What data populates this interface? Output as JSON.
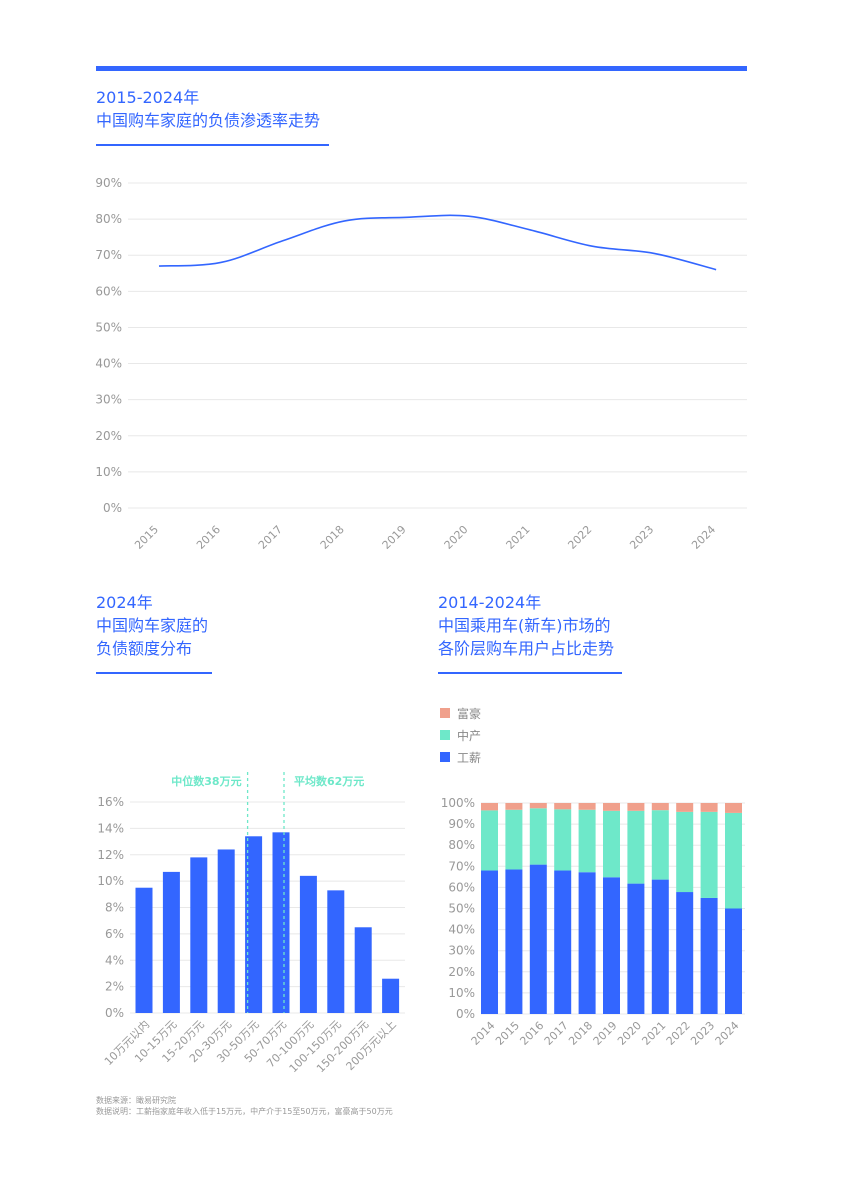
{
  "colors": {
    "accent": "#3366ff",
    "working": "#3366ff",
    "middle": "#6ee8c9",
    "rich": "#f0a08c",
    "annotation": "#6ee8c9",
    "grid": "#e8e8e8",
    "tick": "#999999"
  },
  "chart_data": [
    {
      "type": "line",
      "title_lines": [
        "2015-2024年",
        "中国购车家庭的负债渗透率走势"
      ],
      "categories": [
        "2015",
        "2016",
        "2017",
        "2018",
        "2019",
        "2020",
        "2021",
        "2022",
        "2023",
        "2024"
      ],
      "values": [
        67,
        68,
        74,
        79.5,
        80.5,
        80.8,
        77,
        72.5,
        70.5,
        66
      ],
      "yticks": [
        "0%",
        "10%",
        "20%",
        "30%",
        "40%",
        "50%",
        "60%",
        "70%",
        "80%",
        "90%"
      ],
      "ylim": [
        0,
        90
      ],
      "grid": true,
      "smooth": true
    },
    {
      "type": "bar",
      "title_lines": [
        "2024年",
        "中国购车家庭的",
        "负债额度分布"
      ],
      "categories": [
        "10万元以内",
        "10-15万元",
        "15-20万元",
        "20-30万元",
        "30-50万元",
        "50-70万元",
        "70-100万元",
        "100-150万元",
        "150-200万元",
        "200万元以上"
      ],
      "values": [
        9.5,
        10.7,
        11.8,
        12.4,
        13.4,
        13.7,
        10.4,
        9.3,
        6.5,
        2.6
      ],
      "yticks": [
        "0%",
        "2%",
        "4%",
        "6%",
        "8%",
        "10%",
        "12%",
        "14%",
        "16%"
      ],
      "ylim": [
        0,
        16
      ],
      "grid": true,
      "annotations": [
        {
          "label": "中位数38万元",
          "category_index": 4
        },
        {
          "label": "平均数62万元",
          "category_index": 5
        }
      ]
    },
    {
      "type": "bar",
      "stacked": true,
      "title_lines": [
        "2014-2024年",
        "中国乘用车(新车)市场的",
        "各阶层购车用户占比走势"
      ],
      "categories": [
        "2014",
        "2015",
        "2016",
        "2017",
        "2018",
        "2019",
        "2020",
        "2021",
        "2022",
        "2023",
        "2024"
      ],
      "series": [
        {
          "name": "工薪",
          "values": [
            68,
            68.5,
            70.8,
            68,
            67.2,
            64.8,
            61.8,
            63.7,
            57.8,
            55,
            50
          ]
        },
        {
          "name": "中产",
          "values": [
            28.5,
            28.3,
            26.7,
            29,
            29.6,
            31.5,
            34.5,
            32.9,
            38,
            40.8,
            45.3
          ]
        },
        {
          "name": "富豪",
          "values": [
            3.5,
            3.2,
            2.5,
            3,
            3.2,
            3.7,
            3.7,
            3.4,
            4.2,
            4.2,
            4.7
          ]
        }
      ],
      "legend_order": [
        "富豪",
        "中产",
        "工薪"
      ],
      "legend_placement": "top-left",
      "yticks": [
        "0%",
        "10%",
        "20%",
        "30%",
        "40%",
        "50%",
        "60%",
        "70%",
        "80%",
        "90%",
        "100%"
      ],
      "ylim": [
        0,
        100
      ],
      "grid": true
    }
  ],
  "footnote": {
    "source": "数据来源：瞰易研究院",
    "note": "数据说明：工薪指家庭年收入低于15万元，中产介于15至50万元，富豪高于50万元"
  }
}
